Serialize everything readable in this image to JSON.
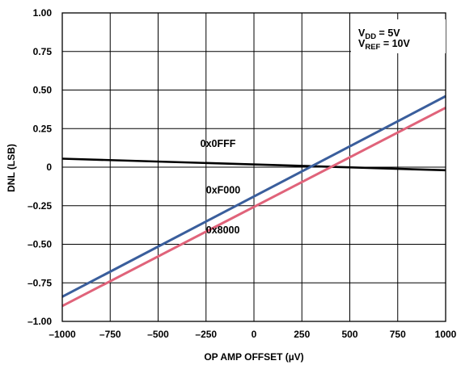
{
  "chart_data": {
    "type": "line",
    "xlabel": "OP AMP OFFSET (µV)",
    "ylabel": "DNL (LSB)",
    "xlim": [
      -1000,
      1000
    ],
    "ylim": [
      -1.0,
      1.0
    ],
    "x_ticks": [
      -1000,
      -750,
      -500,
      -250,
      0,
      250,
      500,
      750,
      1000
    ],
    "x_tick_labels": [
      "–1000",
      "–750",
      "–500",
      "–250",
      "0",
      "250",
      "500",
      "750",
      "1000"
    ],
    "y_ticks": [
      -1.0,
      -0.75,
      -0.5,
      -0.25,
      0,
      0.25,
      0.5,
      0.75,
      1.0
    ],
    "y_tick_labels": [
      "–1.00",
      "–0.75",
      "–0.50",
      "–0.25",
      "0",
      "0.25",
      "0.50",
      "0.75",
      "1.00"
    ],
    "grid": true,
    "series": [
      {
        "name": "0x0FFF",
        "color": "#000000",
        "x": [
          -1000,
          1000
        ],
        "y": [
          0.055,
          -0.02
        ]
      },
      {
        "name": "0xF000",
        "color": "#3a5e9c",
        "x": [
          -1000,
          1000
        ],
        "y": [
          -0.84,
          0.46
        ]
      },
      {
        "name": "0x8000",
        "color": "#e0637a",
        "x": [
          -1000,
          1000
        ],
        "y": [
          -0.9,
          0.385
        ]
      }
    ],
    "annotation": {
      "line1_main": "V",
      "line1_sub": "DD",
      "line1_rest": " = 5V",
      "line2_main": "V",
      "line2_sub": "REF",
      "line2_rest": " = 10V"
    }
  }
}
